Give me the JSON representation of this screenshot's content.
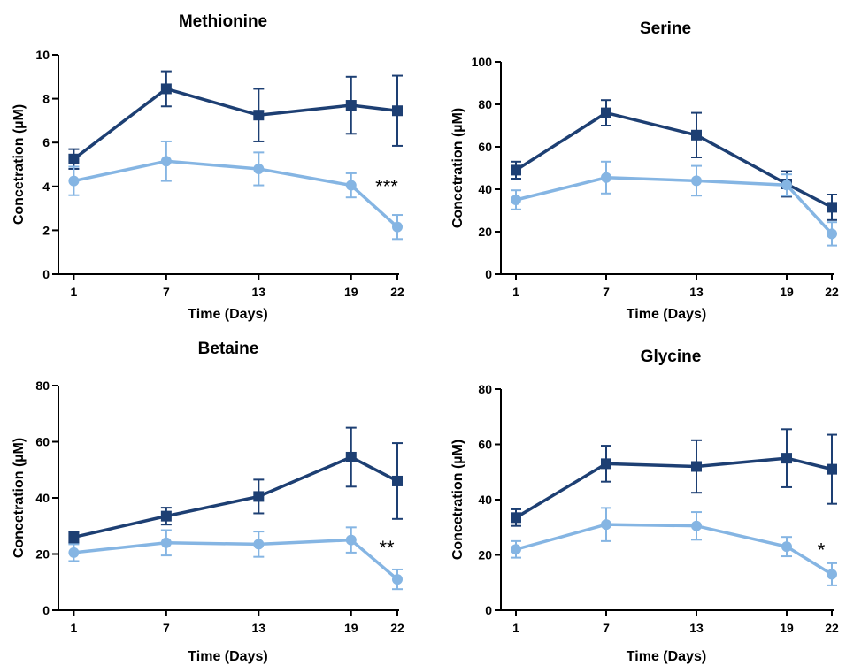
{
  "chart_data": [
    {
      "type": "line",
      "title": "Methionine",
      "xlabel": "Time (Days)",
      "ylabel": "Concetration (µM)",
      "x": [
        1,
        7,
        13,
        19,
        22
      ],
      "xlim": [
        0,
        22
      ],
      "ylim": [
        0,
        10
      ],
      "yticks": [
        0,
        2,
        4,
        6,
        8,
        10
      ],
      "legend": "none",
      "series": [
        {
          "color": "#1d3f73",
          "marker": "square",
          "values": [
            5.25,
            8.45,
            7.25,
            7.7,
            7.45
          ],
          "errors": [
            0.45,
            0.8,
            1.2,
            1.3,
            1.6
          ]
        },
        {
          "color": "#85b5e3",
          "marker": "circle",
          "values": [
            4.25,
            5.15,
            4.8,
            4.05,
            2.15
          ],
          "errors": [
            0.65,
            0.9,
            0.75,
            0.55,
            0.55
          ]
        }
      ],
      "annotation": {
        "text": "***",
        "x": 22,
        "y": 4.1
      }
    },
    {
      "type": "line",
      "title": "Serine",
      "xlabel": "Time (Days)",
      "ylabel": "Concetration (µM)",
      "x": [
        1,
        7,
        13,
        19,
        22
      ],
      "xlim": [
        0,
        22
      ],
      "ylim": [
        0,
        100
      ],
      "yticks": [
        0,
        20,
        40,
        60,
        80,
        100
      ],
      "legend": "none",
      "series": [
        {
          "color": "#1d3f73",
          "marker": "square",
          "values": [
            49,
            76,
            65.5,
            42.5,
            31.5
          ],
          "errors": [
            4,
            6,
            10.5,
            6,
            6
          ]
        },
        {
          "color": "#85b5e3",
          "marker": "circle",
          "values": [
            35,
            45.5,
            44,
            42,
            19
          ],
          "errors": [
            4.5,
            7.5,
            7,
            5,
            5.5
          ]
        }
      ]
    },
    {
      "type": "line",
      "title": "Betaine",
      "xlabel": "Time (Days)",
      "ylabel": "Concetration (µM)",
      "x": [
        1,
        7,
        13,
        19,
        22
      ],
      "xlim": [
        0,
        22
      ],
      "ylim": [
        0,
        80
      ],
      "yticks": [
        0,
        20,
        40,
        60,
        80
      ],
      "legend": "none",
      "series": [
        {
          "color": "#1d3f73",
          "marker": "square",
          "values": [
            26,
            33.5,
            40.5,
            54.5,
            46
          ],
          "errors": [
            2,
            3,
            6,
            10.5,
            13.5
          ]
        },
        {
          "color": "#85b5e3",
          "marker": "circle",
          "values": [
            20.5,
            24,
            23.5,
            25,
            11
          ],
          "errors": [
            3,
            4.5,
            4.5,
            4.5,
            3.5
          ]
        }
      ],
      "annotation": {
        "text": "**",
        "x": 22,
        "y": 23
      }
    },
    {
      "type": "line",
      "title": "Glycine",
      "xlabel": "Time (Days)",
      "ylabel": "Concetration (µM)",
      "x": [
        1,
        7,
        13,
        19,
        22
      ],
      "xlim": [
        0,
        22
      ],
      "ylim": [
        0,
        80
      ],
      "yticks": [
        0,
        20,
        40,
        60,
        80
      ],
      "legend": "none",
      "series": [
        {
          "color": "#1d3f73",
          "marker": "square",
          "values": [
            33.5,
            53,
            52,
            55,
            51
          ],
          "errors": [
            3,
            6.5,
            9.5,
            10.5,
            12.5
          ]
        },
        {
          "color": "#85b5e3",
          "marker": "circle",
          "values": [
            22,
            31,
            30.5,
            23,
            13
          ],
          "errors": [
            3,
            6,
            5,
            3.5,
            4
          ]
        }
      ],
      "annotation": {
        "text": "*",
        "x": 22,
        "y": 22.5
      }
    }
  ]
}
